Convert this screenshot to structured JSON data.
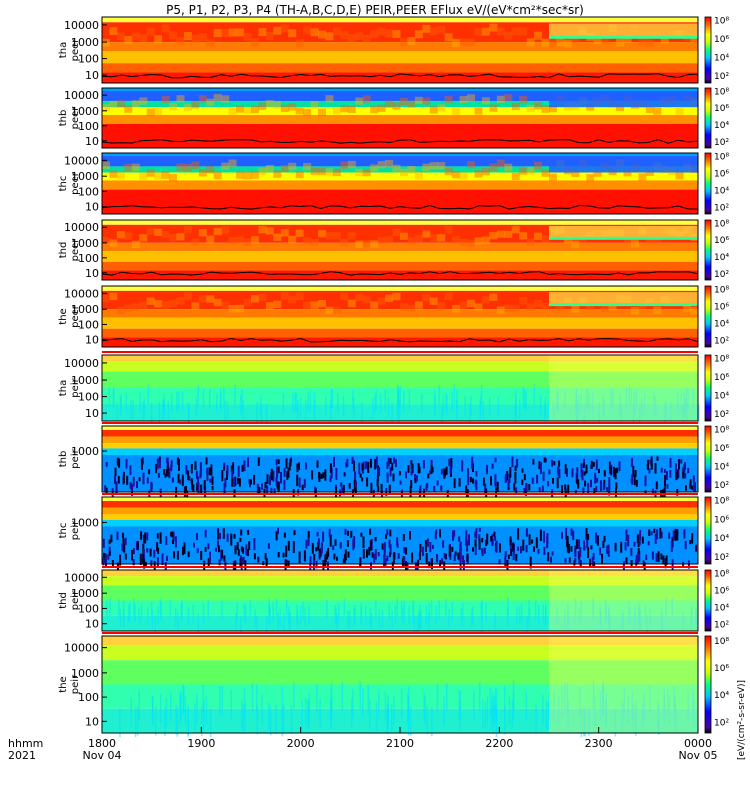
{
  "title": "P5, P1, P2, P3, P4 (TH-A,B,C,D,E) PEIR,PEER EFlux eV/(eV*cm²*sec*sr)",
  "chart_data": {
    "type": "heatmap",
    "title": "P5, P1, P2, P3, P4 (TH-A,B,C,D,E) PEIR,PEER EFlux eV/(eV*cm²*sec*sr)",
    "x_axis": {
      "corner_label_line1": "hhmm",
      "corner_label_line2": "2021",
      "ticks": [
        {
          "label": "1800",
          "sublabel": "Nov 04",
          "hour": 0
        },
        {
          "label": "1900",
          "sublabel": "",
          "hour": 1
        },
        {
          "label": "2000",
          "sublabel": "",
          "hour": 2
        },
        {
          "label": "2100",
          "sublabel": "",
          "hour": 3
        },
        {
          "label": "2200",
          "sublabel": "",
          "hour": 4
        },
        {
          "label": "2300",
          "sublabel": "",
          "hour": 5
        },
        {
          "label": "0000",
          "sublabel": "Nov 05",
          "hour": 6
        }
      ],
      "range_hours": [
        0,
        6
      ]
    },
    "colorbar_label": "[eV/(cm²-s-sr-eV)]",
    "colorbar_label_alt": "eV/(eV*cm²*sec*sr)",
    "colorbar_ticks": [
      "10⁸",
      "10⁶",
      "10⁴",
      "10²"
    ],
    "panels": [
      {
        "probe": "tha",
        "species": "peer",
        "ylabel_top": "tha",
        "ylabel_bottom": "peer",
        "yticks": [
          "10000",
          "1000",
          "100",
          "10"
        ],
        "ylim_eV": [
          5,
          30000
        ],
        "log_y": true,
        "colorbar_ticks": [
          "10⁸",
          "10⁶",
          "10⁴",
          "10²"
        ]
      },
      {
        "probe": "thb",
        "species": "peer",
        "ylabel_top": "thb",
        "ylabel_bottom": "peer",
        "yticks": [
          "10000",
          "1000",
          "100",
          "10"
        ],
        "ylim_eV": [
          5,
          30000
        ],
        "log_y": true,
        "colorbar_ticks": [
          "10⁸",
          "10⁶",
          "10⁴",
          "10²"
        ]
      },
      {
        "probe": "thc",
        "species": "peer",
        "ylabel_top": "thc",
        "ylabel_bottom": "peer",
        "yticks": [
          "10000",
          "1000",
          "100",
          "10"
        ],
        "ylim_eV": [
          5,
          30000
        ],
        "log_y": true,
        "colorbar_ticks": [
          "10⁸",
          "10⁶",
          "10⁴",
          "10²"
        ]
      },
      {
        "probe": "thd",
        "species": "peer",
        "ylabel_top": "thd",
        "ylabel_bottom": "peer",
        "yticks": [
          "10000",
          "1000",
          "100",
          "10"
        ],
        "ylim_eV": [
          5,
          30000
        ],
        "log_y": true,
        "colorbar_ticks": [
          "10⁸",
          "10⁶",
          "10⁴",
          "10²"
        ]
      },
      {
        "probe": "the",
        "species": "peer",
        "ylabel_top": "the",
        "ylabel_bottom": "peer",
        "yticks": [
          "10000",
          "1000",
          "100",
          "10"
        ],
        "ylim_eV": [
          5,
          30000
        ],
        "log_y": true,
        "colorbar_ticks": [
          "10⁸",
          "10⁶",
          "10⁴",
          "10²"
        ]
      },
      {
        "probe": "tha",
        "species": "peir",
        "ylabel_top": "tha",
        "ylabel_bottom": "peir",
        "yticks": [
          "10000",
          "1000",
          "100",
          "10"
        ],
        "ylim_eV": [
          5,
          30000
        ],
        "log_y": true,
        "colorbar_ticks": [
          "10⁸",
          "10⁶",
          "10⁴",
          "10²"
        ]
      },
      {
        "probe": "thb",
        "species": "peir",
        "ylabel_top": "thb",
        "ylabel_bottom": "peir",
        "yticks": [
          "1000"
        ],
        "ylim_eV": [
          5,
          30000
        ],
        "log_y": true,
        "colorbar_ticks": [
          "10⁸",
          "10⁶",
          "10⁴",
          "10²"
        ]
      },
      {
        "probe": "thc",
        "species": "peir",
        "ylabel_top": "thc",
        "ylabel_bottom": "peir",
        "yticks": [
          "1000"
        ],
        "ylim_eV": [
          5,
          30000
        ],
        "log_y": true,
        "colorbar_ticks": [
          "10⁸",
          "10⁶",
          "10⁴",
          "10²"
        ]
      },
      {
        "probe": "thd",
        "species": "peir",
        "ylabel_top": "thd",
        "ylabel_bottom": "peir",
        "yticks": [
          "10000",
          "1000",
          "100",
          "10"
        ],
        "ylim_eV": [
          5,
          30000
        ],
        "log_y": true,
        "colorbar_ticks": [
          "10⁸",
          "10⁶",
          "10⁴",
          "10²"
        ]
      },
      {
        "probe": "the",
        "species": "peir",
        "ylabel_top": "the",
        "ylabel_bottom": "peir",
        "yticks": [
          "10000",
          "1000",
          "100",
          "10"
        ],
        "ylim_eV": [
          5,
          30000
        ],
        "log_y": true,
        "colorbar_ticks": [
          "10⁸",
          "10⁶",
          "10⁴",
          "10²"
        ]
      }
    ],
    "grid": false,
    "legend": "colorbar-right"
  }
}
